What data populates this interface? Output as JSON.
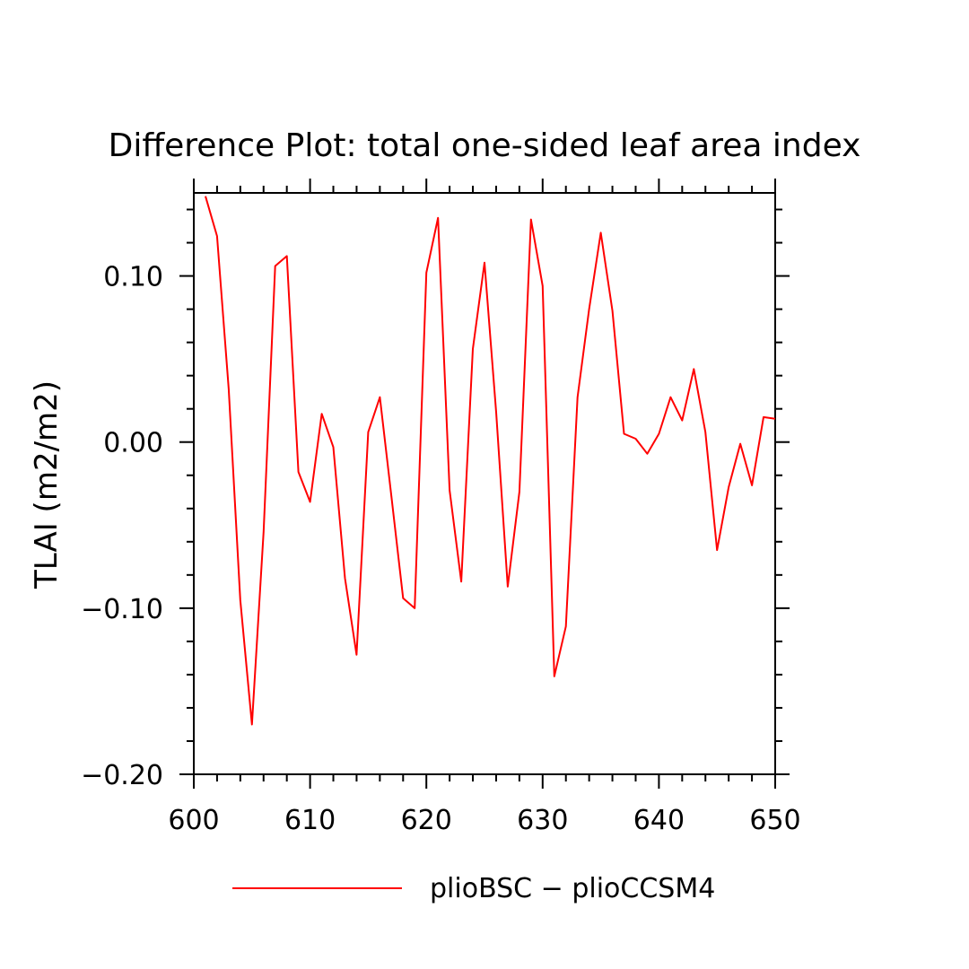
{
  "chart_data": {
    "type": "line",
    "title": "Difference Plot: total one-sided leaf area index",
    "xlabel": "",
    "ylabel": "TLAI  (m2/m2)",
    "xlim": [
      600,
      650
    ],
    "ylim": [
      -0.2,
      0.15
    ],
    "x_ticks": [
      600,
      610,
      620,
      630,
      640,
      650
    ],
    "x_tick_labels": [
      "600",
      "610",
      "620",
      "630",
      "640",
      "650"
    ],
    "y_ticks": [
      -0.2,
      -0.1,
      0.0,
      0.1
    ],
    "y_tick_labels": [
      "−0.20",
      "−0.10",
      "0.00",
      "0.10"
    ],
    "grid": false,
    "legend_position": "bottom",
    "series": [
      {
        "name": "plioBSC − plioCCSM4",
        "color": "#ff0000",
        "x": [
          601,
          602,
          603,
          604,
          605,
          606,
          607,
          608,
          609,
          610,
          611,
          612,
          613,
          614,
          615,
          616,
          617,
          618,
          619,
          620,
          621,
          622,
          623,
          624,
          625,
          626,
          627,
          628,
          629,
          630,
          631,
          632,
          633,
          634,
          635,
          636,
          637,
          638,
          639,
          640,
          641,
          642,
          643,
          644,
          645,
          646,
          647,
          648,
          649,
          650
        ],
        "y": [
          0.148,
          0.124,
          0.032,
          -0.095,
          -0.17,
          -0.054,
          0.106,
          0.112,
          -0.018,
          -0.036,
          0.017,
          -0.003,
          -0.082,
          -0.128,
          0.006,
          0.027,
          -0.033,
          -0.094,
          -0.1,
          0.102,
          0.135,
          -0.029,
          -0.084,
          0.056,
          0.108,
          0.018,
          -0.087,
          -0.03,
          0.134,
          0.094,
          -0.141,
          -0.111,
          0.027,
          0.08,
          0.126,
          0.079,
          0.005,
          0.002,
          -0.007,
          0.005,
          0.027,
          0.013,
          0.044,
          0.006,
          -0.065,
          -0.027,
          -0.001,
          -0.026,
          0.015,
          0.014
        ]
      }
    ]
  }
}
